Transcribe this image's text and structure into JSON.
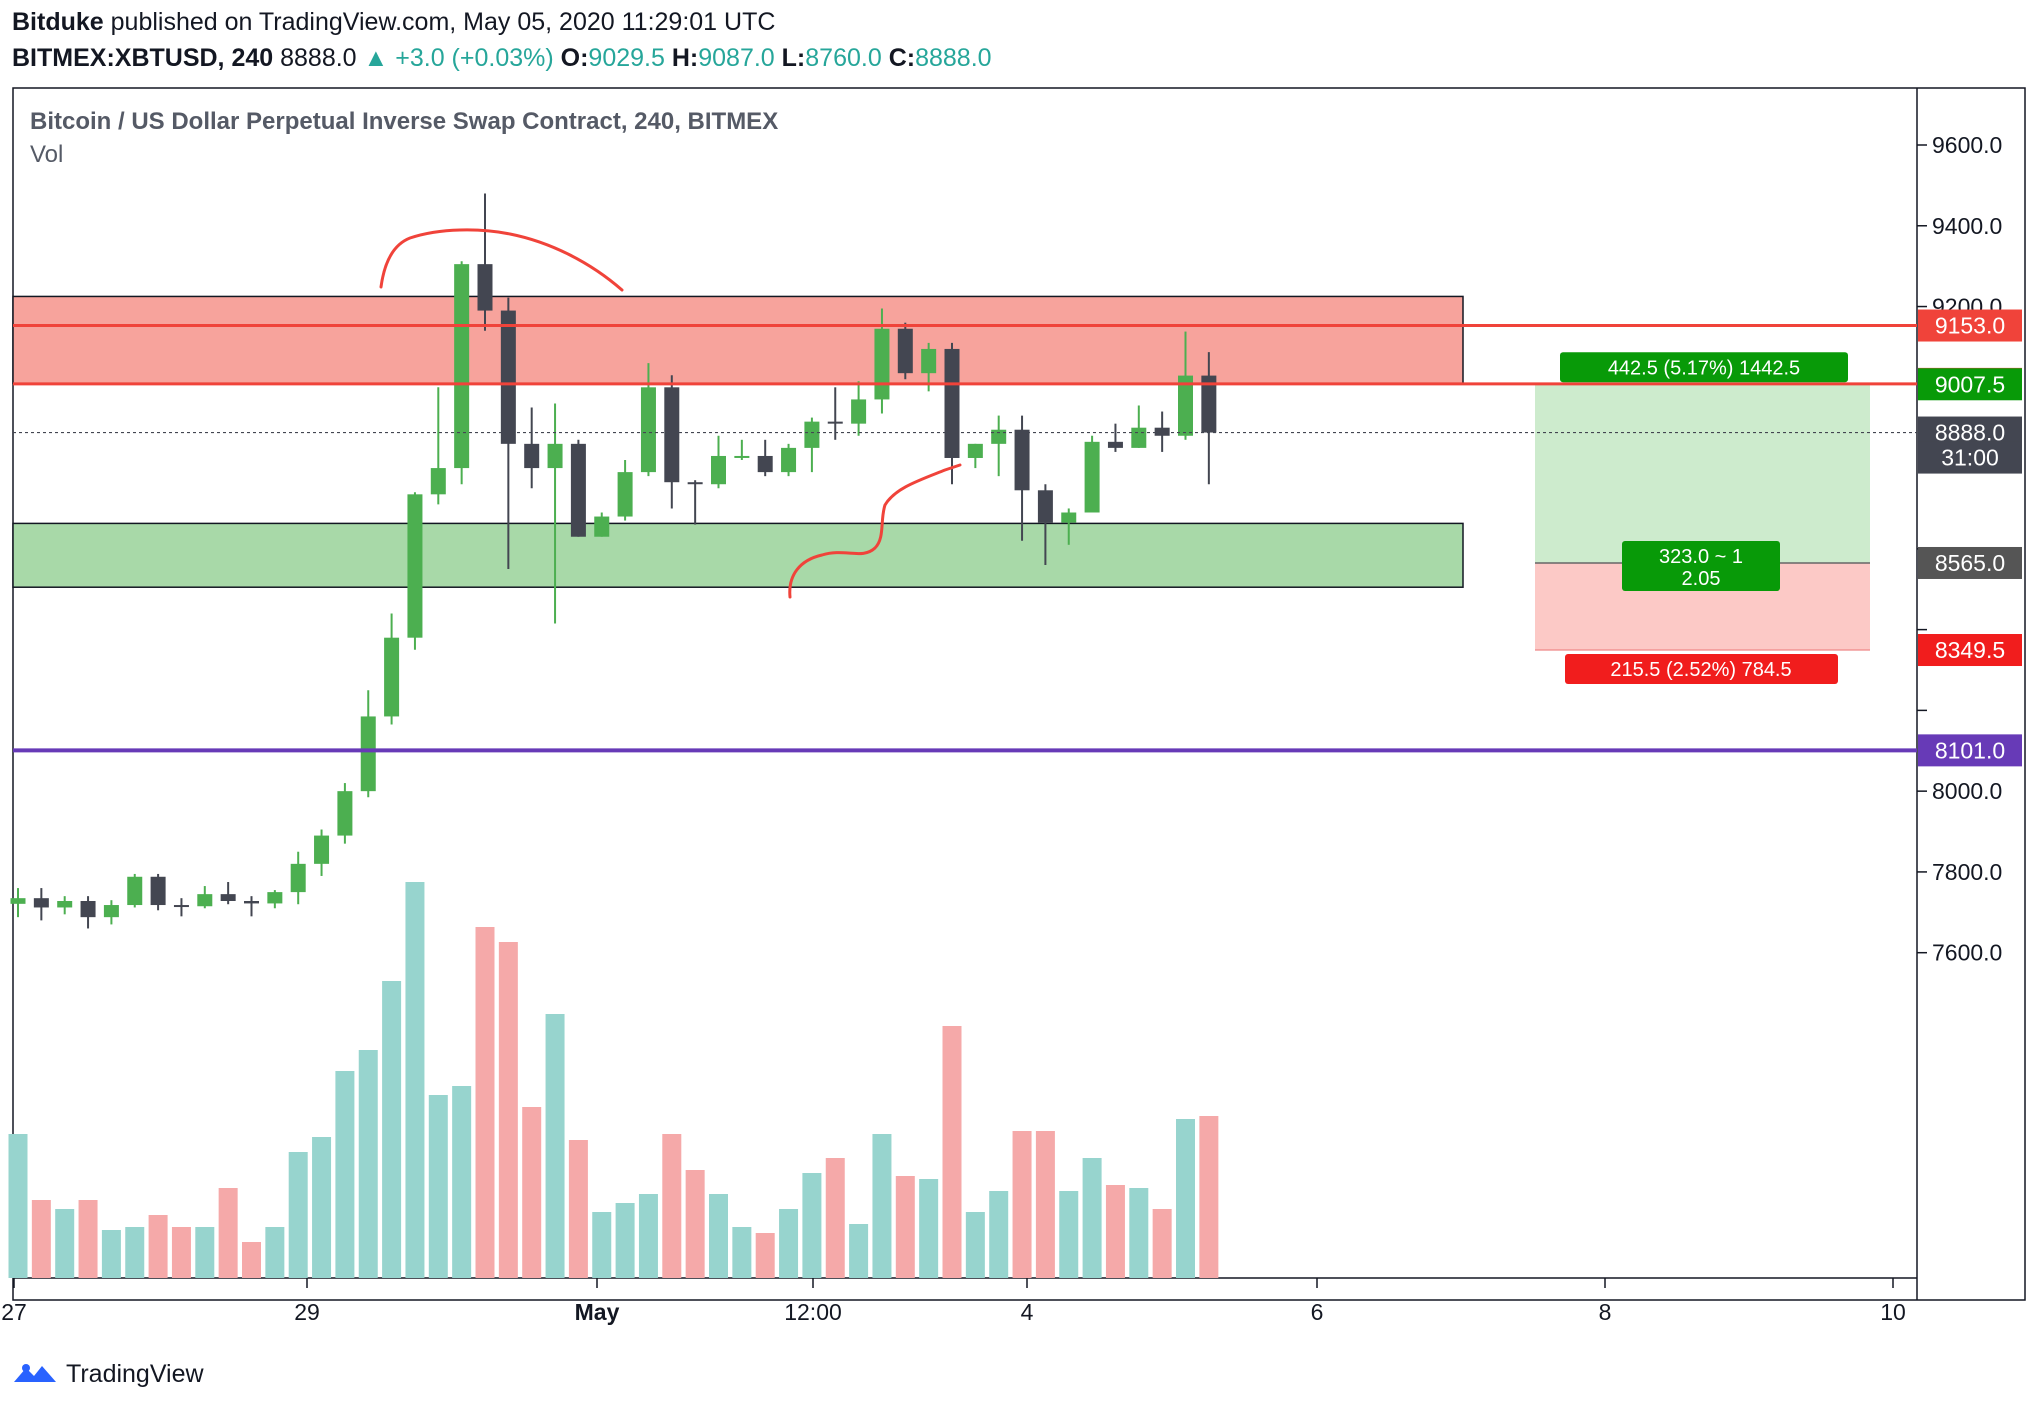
{
  "header": {
    "publisher": "Bitduke",
    "published_text": "published on TradingView.com, May 05, 2020 11:29:01 UTC",
    "symbol": "BITMEX:XBTUSD, 240",
    "last": "8888.0",
    "change": "+3.0 (+0.03%)",
    "o_label": "O:",
    "o": "9029.5",
    "h_label": "H:",
    "h": "9087.0",
    "l_label": "L:",
    "l": "8760.0",
    "c_label": "C:",
    "c": "8888.0"
  },
  "legend": {
    "title": "Bitcoin / US Dollar Perpetual Inverse Swap Contract, 240, BITMEX",
    "vol": "Vol"
  },
  "footer": {
    "brand": "TradingView"
  },
  "colors": {
    "up": "#4caf50",
    "down": "#434651",
    "vol_up": "#97d4ce",
    "vol_down": "#f5a9a9",
    "resistance_fill": "#f7a39c",
    "support_fill": "#a8d9a8",
    "red_line": "#f0433a",
    "purple_line": "#673ab7",
    "profit_fill": "#cdebcd",
    "loss_fill": "#fcc9c6",
    "green_tag": "#089a08",
    "red_tag": "#f11d1d"
  },
  "chart_data": {
    "type": "candlestick",
    "timeframe": "240",
    "y_range": [
      7460,
      9700
    ],
    "y_ticks": [
      "9600.0",
      "9400.0",
      "9200.0",
      "8000.0",
      "7800.0",
      "7600.0"
    ],
    "x_ticks": [
      "27",
      "29",
      "May",
      "12:00",
      "4",
      "6",
      "8",
      "10"
    ],
    "candles": [
      [
        7721,
        7760,
        7688,
        7735
      ],
      [
        7735,
        7760,
        7680,
        7712
      ],
      [
        7712,
        7740,
        7695,
        7728
      ],
      [
        7728,
        7740,
        7660,
        7688
      ],
      [
        7688,
        7730,
        7670,
        7718
      ],
      [
        7718,
        7795,
        7712,
        7788
      ],
      [
        7788,
        7795,
        7705,
        7718
      ],
      [
        7718,
        7735,
        7690,
        7715
      ],
      [
        7715,
        7765,
        7710,
        7745
      ],
      [
        7745,
        7775,
        7720,
        7728
      ],
      [
        7728,
        7740,
        7690,
        7722
      ],
      [
        7722,
        7755,
        7710,
        7750
      ],
      [
        7750,
        7850,
        7720,
        7820
      ],
      [
        7820,
        7905,
        7790,
        7890
      ],
      [
        7890,
        8020,
        7870,
        8000
      ],
      [
        8000,
        8250,
        7985,
        8185
      ],
      [
        8185,
        8440,
        8165,
        8380
      ],
      [
        8380,
        8740,
        8350,
        8735
      ],
      [
        8735,
        9000,
        8710,
        8800
      ],
      [
        8800,
        9312,
        8760,
        9305
      ],
      [
        9305,
        9480,
        9140,
        9190
      ],
      [
        9190,
        9222,
        8550,
        8860
      ],
      [
        8860,
        8950,
        8750,
        8800
      ],
      [
        8800,
        8960,
        8415,
        8860
      ],
      [
        8860,
        8870,
        8630,
        8630
      ],
      [
        8630,
        8690,
        8630,
        8680
      ],
      [
        8680,
        8820,
        8670,
        8790
      ],
      [
        8790,
        9060,
        8780,
        9000
      ],
      [
        9000,
        9030,
        8700,
        8765
      ],
      [
        8765,
        8770,
        8660,
        8760
      ],
      [
        8760,
        8880,
        8750,
        8830
      ],
      [
        8830,
        8870,
        8820,
        8830
      ],
      [
        8830,
        8870,
        8780,
        8790
      ],
      [
        8790,
        8860,
        8780,
        8850
      ],
      [
        8850,
        8925,
        8790,
        8915
      ],
      [
        8915,
        9000,
        8870,
        8910
      ],
      [
        8910,
        9015,
        8880,
        8970
      ],
      [
        8970,
        9195,
        8935,
        9145
      ],
      [
        9145,
        9160,
        9020,
        9035
      ],
      [
        9035,
        9110,
        8990,
        9095
      ],
      [
        9095,
        9110,
        8760,
        8825
      ],
      [
        8825,
        8860,
        8800,
        8860
      ],
      [
        8860,
        8930,
        8780,
        8895
      ],
      [
        8895,
        8930,
        8620,
        8745
      ],
      [
        8745,
        8760,
        8560,
        8665
      ],
      [
        8665,
        8700,
        8610,
        8690
      ],
      [
        8690,
        8880,
        8690,
        8865
      ],
      [
        8865,
        8910,
        8840,
        8850
      ],
      [
        8850,
        8955,
        8850,
        8900
      ],
      [
        8900,
        8940,
        8840,
        8880
      ],
      [
        8880,
        9138,
        8870,
        9029
      ],
      [
        9029,
        9087,
        8760,
        8888
      ]
    ],
    "volume": [
      0.48,
      0.26,
      0.23,
      0.26,
      0.16,
      0.17,
      0.21,
      0.17,
      0.17,
      0.3,
      0.12,
      0.17,
      0.42,
      0.47,
      0.69,
      0.76,
      0.99,
      1.32,
      0.61,
      0.64,
      1.17,
      1.12,
      0.57,
      0.88,
      0.46,
      0.22,
      0.25,
      0.28,
      0.48,
      0.36,
      0.28,
      0.17,
      0.15,
      0.23,
      0.35,
      0.4,
      0.18,
      0.48,
      0.34,
      0.33,
      0.84,
      0.22,
      0.29,
      0.49,
      0.49,
      0.29,
      0.4,
      0.31,
      0.3,
      0.23,
      0.53,
      0.54
    ],
    "levels": [
      {
        "label": "9153.0",
        "value": 9153,
        "color": "#f0433a"
      },
      {
        "label": "9008.5",
        "value": 9008.5,
        "color": "#f0433a"
      },
      {
        "label": "9007.5",
        "value": 9007.5,
        "color": "#089a08"
      },
      {
        "label": "8888.0",
        "value": 8888,
        "color": "#434651"
      },
      {
        "label": "31:00",
        "value": 8826,
        "color": "#434651"
      },
      {
        "label": "8565.0",
        "value": 8565,
        "color": "#555555"
      },
      {
        "label": "8349.5",
        "value": 8349.5,
        "color": "#f11d1d"
      },
      {
        "label": "8101.0",
        "value": 8101,
        "color": "#673ab7"
      }
    ],
    "zones": {
      "resistance": [
        9010,
        9225
      ],
      "support": [
        8505,
        8663
      ]
    },
    "position": {
      "target_label": "442.5 (5.17%) 1442.5",
      "stop_label": "215.5 (2.52%) 784.5",
      "ratio_line1": "323.0 ~ 1",
      "ratio_line2": "2.05",
      "entry": 8565,
      "target": 9007.5,
      "stop": 8349.5
    }
  }
}
